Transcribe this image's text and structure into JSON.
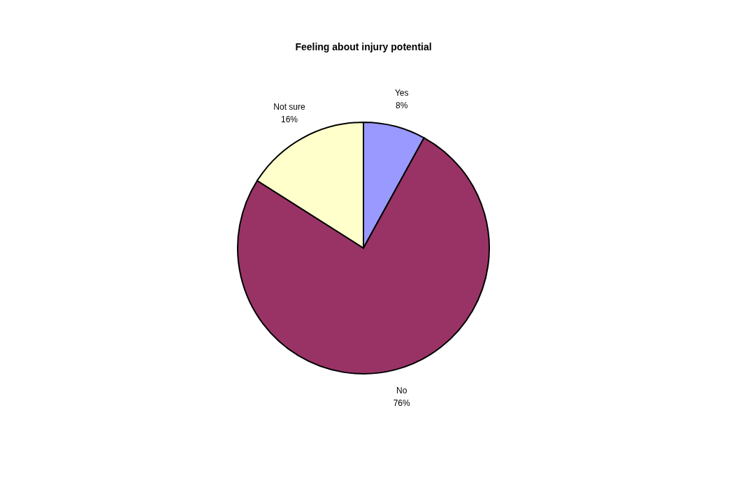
{
  "chart_data": {
    "type": "pie",
    "title": "Feeling about injury potential",
    "categories": [
      "Yes",
      "No",
      "Not sure"
    ],
    "values": [
      8,
      76,
      16
    ],
    "value_labels": [
      "8%",
      "76%",
      "16%"
    ],
    "colors": [
      "#9999ff",
      "#993366",
      "#ffffcc"
    ],
    "legend": false
  }
}
